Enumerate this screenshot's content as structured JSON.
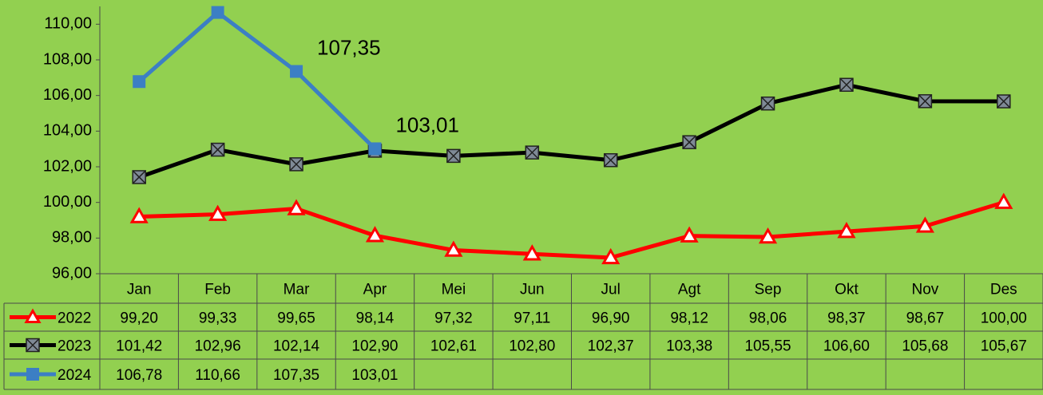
{
  "chart_data": {
    "type": "line",
    "categories": [
      "Jan",
      "Feb",
      "Mar",
      "Apr",
      "Mei",
      "Jun",
      "Jul",
      "Agt",
      "Sep",
      "Okt",
      "Nov",
      "Des"
    ],
    "series": [
      {
        "name": "2022",
        "color": "#ff0000",
        "marker": "triangle",
        "values": [
          99.2,
          99.33,
          99.65,
          98.14,
          97.32,
          97.11,
          96.9,
          98.12,
          98.06,
          98.37,
          98.67,
          100.0
        ],
        "value_labels": [
          "99,20",
          "99,33",
          "99,65",
          "98,14",
          "97,32",
          "97,11",
          "96,90",
          "98,12",
          "98,06",
          "98,37",
          "98,67",
          "100,00"
        ]
      },
      {
        "name": "2023",
        "color": "#000000",
        "marker": "xsquare",
        "values": [
          101.42,
          102.96,
          102.14,
          102.9,
          102.61,
          102.8,
          102.37,
          103.38,
          105.55,
          106.6,
          105.68,
          105.67
        ],
        "value_labels": [
          "101,42",
          "102,96",
          "102,14",
          "102,90",
          "102,61",
          "102,80",
          "102,37",
          "103,38",
          "105,55",
          "106,60",
          "105,68",
          "105,67"
        ]
      },
      {
        "name": "2024",
        "color": "#3c7fc4",
        "marker": "square",
        "values": [
          106.78,
          110.66,
          107.35,
          103.01,
          null,
          null,
          null,
          null,
          null,
          null,
          null,
          null
        ],
        "value_labels": [
          "106,78",
          "110,66",
          "107,35",
          "103,01",
          null,
          null,
          null,
          null,
          null,
          null,
          null,
          null
        ]
      }
    ],
    "annotated_points": [
      [
        2,
        2
      ],
      [
        2,
        3
      ]
    ],
    "ylim": [
      96,
      111
    ],
    "yticks": [
      {
        "value": 96,
        "label": "96,00"
      },
      {
        "value": 98,
        "label": "98,00"
      },
      {
        "value": 100,
        "label": "100,00"
      },
      {
        "value": 102,
        "label": "102,00"
      },
      {
        "value": 104,
        "label": "104,00"
      },
      {
        "value": 106,
        "label": "106,00"
      },
      {
        "value": 108,
        "label": "108,00"
      },
      {
        "value": 110,
        "label": "110,00"
      }
    ],
    "grid": false
  }
}
